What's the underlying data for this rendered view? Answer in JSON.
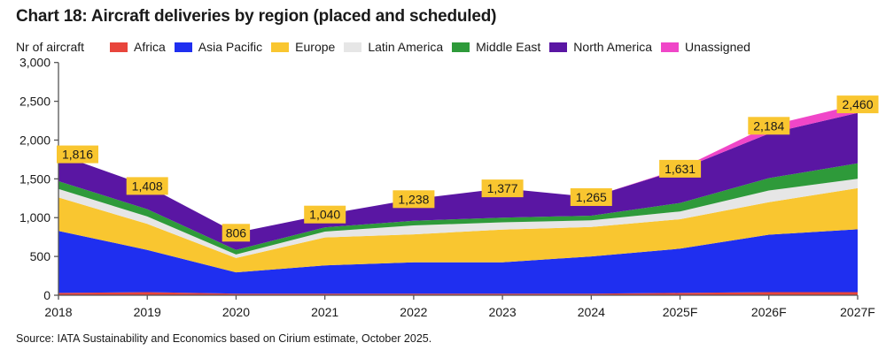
{
  "chart_data": {
    "type": "area",
    "stacked": true,
    "title": "Chart 18: Aircraft deliveries by region (placed and scheduled)",
    "ylabel": "Nr of aircraft",
    "xlabel": "",
    "ylim": [
      0,
      3000
    ],
    "yticks": [
      0,
      500,
      1000,
      1500,
      2000,
      2500,
      3000
    ],
    "ytick_labels": [
      "0",
      "500",
      "1,000",
      "1,500",
      "2,000",
      "2,500",
      "3,000"
    ],
    "grid": false,
    "legend_position": "top",
    "categories": [
      "2018",
      "2019",
      "2020",
      "2021",
      "2022",
      "2023",
      "2024",
      "2025F",
      "2026F",
      "2027F"
    ],
    "series": [
      {
        "name": "Africa",
        "color": "#e8453c",
        "values": [
          30,
          40,
          20,
          20,
          20,
          20,
          20,
          30,
          40,
          40
        ]
      },
      {
        "name": "Asia Pacific",
        "color": "#1f2ff0",
        "values": [
          800,
          545,
          275,
          365,
          405,
          405,
          480,
          570,
          740,
          810
        ]
      },
      {
        "name": "Europe",
        "color": "#f9c630",
        "values": [
          430,
          335,
          185,
          360,
          360,
          420,
          380,
          380,
          420,
          530
        ]
      },
      {
        "name": "Latin America",
        "color": "#e6e6e6",
        "values": [
          110,
          95,
          45,
          75,
          115,
          95,
          85,
          100,
          150,
          120
        ]
      },
      {
        "name": "Middle East",
        "color": "#2e9a3a",
        "values": [
          100,
          95,
          60,
          55,
          60,
          60,
          60,
          110,
          160,
          200
        ]
      },
      {
        "name": "North America",
        "color": "#5a16a3",
        "values": [
          346,
          298,
          221,
          165,
          278,
          377,
          240,
          431,
          574,
          650
        ]
      },
      {
        "name": "Unassigned",
        "color": "#f046c8",
        "values": [
          0,
          0,
          0,
          0,
          0,
          0,
          0,
          10,
          100,
          110
        ]
      }
    ],
    "totals": [
      1816,
      1408,
      806,
      1040,
      1238,
      1377,
      1265,
      1631,
      2184,
      2460
    ],
    "total_labels": [
      "1,816",
      "1,408",
      "806",
      "1,040",
      "1,238",
      "1,377",
      "1,265",
      "1,631",
      "2,184",
      "2,460"
    ],
    "label_box_color": "#f9c630"
  },
  "source": "Source: IATA Sustainability and Economics based on Cirium estimate, October 2025."
}
